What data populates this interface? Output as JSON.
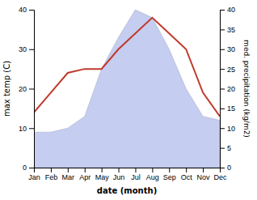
{
  "chart_data": {
    "type": "line",
    "categories": [
      "Jan",
      "Feb",
      "Mar",
      "Apr",
      "May",
      "Jun",
      "Jul",
      "Aug",
      "Sep",
      "Oct",
      "Nov",
      "Dec"
    ],
    "series": [
      {
        "type": "area",
        "axis": "y2",
        "color": "#c5cdf0",
        "values": [
          9,
          9,
          10,
          13,
          25,
          33,
          40,
          38,
          30,
          20,
          13,
          12
        ]
      },
      {
        "type": "line",
        "color": "#c0392b",
        "values": [
          14,
          19,
          24,
          25,
          25,
          30,
          34,
          38,
          34,
          30,
          19,
          13
        ]
      }
    ],
    "xlabel": "date (month)",
    "ylabel": "max temp (C)",
    "y2label": "med. precipitation (kg/m2)",
    "ylim": [
      0,
      40
    ],
    "yticks": [
      0,
      10,
      20,
      30,
      40
    ],
    "y2lim": [
      0,
      40
    ],
    "y2ticks": [
      0,
      5,
      10,
      15,
      20,
      25,
      30,
      35,
      40
    ],
    "grid": false
  }
}
